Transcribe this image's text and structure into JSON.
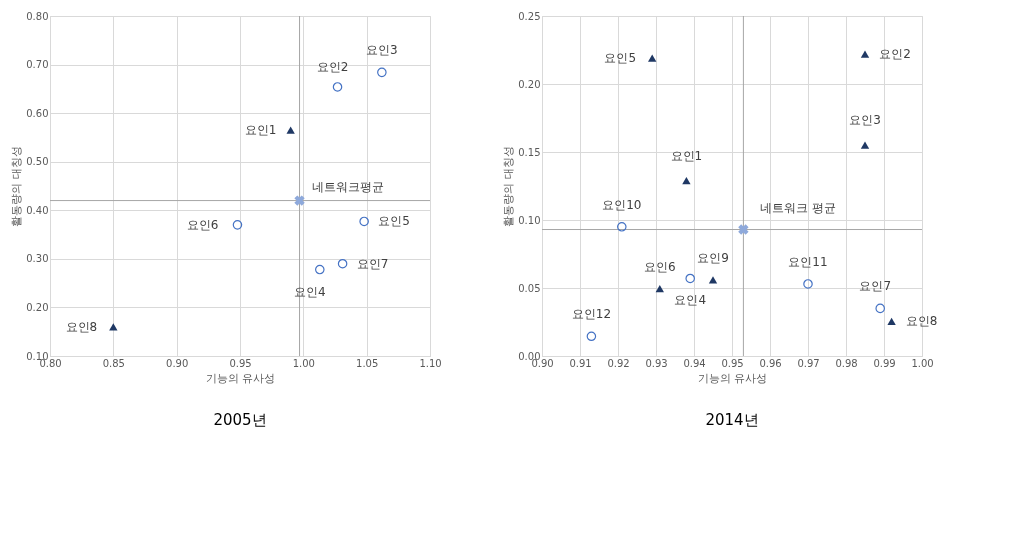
{
  "chart_data": [
    {
      "type": "scatter",
      "title": "2005년",
      "xlabel": "기능의 유사성",
      "ylabel": "활동량의 대칭성",
      "xlim": [
        0.8,
        1.1
      ],
      "xticks": [
        {
          "value": 0.8,
          "label": "0.80"
        },
        {
          "value": 0.85,
          "label": "0.85"
        },
        {
          "value": 0.9,
          "label": "0.90"
        },
        {
          "value": 0.95,
          "label": "0.95"
        },
        {
          "value": 1.0,
          "label": "1.00"
        },
        {
          "value": 1.05,
          "label": "1.05"
        },
        {
          "value": 1.1,
          "label": "1.10"
        }
      ],
      "ylim": [
        0.1,
        0.8
      ],
      "yticks": [
        {
          "value": 0.1,
          "label": "0.10"
        },
        {
          "value": 0.2,
          "label": "0.20"
        },
        {
          "value": 0.3,
          "label": "0.30"
        },
        {
          "value": 0.4,
          "label": "0.40"
        },
        {
          "value": 0.5,
          "label": "0.50"
        },
        {
          "value": 0.6,
          "label": "0.60"
        },
        {
          "value": 0.7,
          "label": "0.70"
        },
        {
          "value": 0.8,
          "label": "0.80"
        }
      ],
      "grid": true,
      "legend": false,
      "series": [
        {
          "marker": "triangle",
          "color": "#1f3864",
          "x": [
            0.99,
            0.85
          ],
          "values": [
            0.565,
            0.16
          ]
        },
        {
          "marker": "circle",
          "color": "#4472c4",
          "x": [
            1.027,
            1.062,
            1.013,
            1.048,
            0.948,
            1.031
          ],
          "values": [
            0.654,
            0.684,
            0.278,
            0.377,
            0.37,
            0.29
          ]
        },
        {
          "marker": "cross",
          "color": "#8ea9db",
          "x": [
            0.997
          ],
          "values": [
            0.42
          ]
        }
      ],
      "ref_lines": [
        {
          "axis": "x",
          "value": 0.997,
          "color": "#a6a6a6"
        },
        {
          "axis": "y",
          "value": 0.42,
          "color": "#a6a6a6"
        }
      ],
      "annotations": [
        {
          "text": "요인1",
          "x": 0.99,
          "y": 0.565
        },
        {
          "text": "요인2",
          "x": 1.027,
          "y": 0.654
        },
        {
          "text": "요인3",
          "x": 1.062,
          "y": 0.684
        },
        {
          "text": "요인4",
          "x": 1.013,
          "y": 0.278
        },
        {
          "text": "요인5",
          "x": 1.048,
          "y": 0.377
        },
        {
          "text": "요인6",
          "x": 0.948,
          "y": 0.37
        },
        {
          "text": "요인7",
          "x": 1.031,
          "y": 0.29
        },
        {
          "text": "요인8",
          "x": 0.85,
          "y": 0.16
        },
        {
          "text": "네트워크평균",
          "x": 0.997,
          "y": 0.42
        }
      ]
    },
    {
      "type": "scatter",
      "title": "2014년",
      "xlabel": "기능의 유사성",
      "ylabel": "활동량의 대칭성",
      "xlim": [
        0.9,
        1.0
      ],
      "xticks": [
        {
          "value": 0.9,
          "label": "0.90"
        },
        0.91,
        0.92,
        0.93,
        0.94,
        0.95,
        0.96,
        0.97,
        0.98,
        0.99,
        {
          "value": 1.0,
          "label": "1.00"
        }
      ],
      "ylim": [
        0.0,
        0.25
      ],
      "yticks": [
        {
          "value": 0.0,
          "label": "0.00"
        },
        0.05,
        {
          "value": 0.1,
          "label": "0.10"
        },
        0.15,
        {
          "value": 0.2,
          "label": "0.20"
        },
        0.25
      ],
      "grid": true,
      "legend": false,
      "series": [
        {
          "marker": "triangle",
          "color": "#1f3864",
          "x": [
            0.938,
            0.985,
            0.985,
            0.929,
            0.931,
            0.992,
            0.945
          ],
          "values": [
            0.129,
            0.222,
            0.155,
            0.219,
            0.0496,
            0.0255,
            0.056
          ]
        },
        {
          "marker": "circle",
          "color": "#4472c4",
          "x": [
            0.939,
            0.989,
            0.921,
            0.97,
            0.913
          ],
          "values": [
            0.057,
            0.035,
            0.095,
            0.053,
            0.0145
          ]
        },
        {
          "marker": "cross",
          "color": "#8ea9db",
          "x": [
            0.953
          ],
          "values": [
            0.093
          ]
        }
      ],
      "ref_lines": [
        {
          "axis": "x",
          "value": 0.953,
          "color": "#a6a6a6"
        },
        {
          "axis": "y",
          "value": 0.093,
          "color": "#a6a6a6"
        }
      ],
      "annotations": [
        {
          "text": "요인1",
          "x": 0.938,
          "y": 0.129
        },
        {
          "text": "요인2",
          "x": 0.985,
          "y": 0.222
        },
        {
          "text": "요인3",
          "x": 0.985,
          "y": 0.155
        },
        {
          "text": "요인4",
          "x": 0.939,
          "y": 0.057
        },
        {
          "text": "요인5",
          "x": 0.929,
          "y": 0.219
        },
        {
          "text": "요인6",
          "x": 0.931,
          "y": 0.0496
        },
        {
          "text": "요인7",
          "x": 0.989,
          "y": 0.035
        },
        {
          "text": "요인8",
          "x": 0.992,
          "y": 0.0255
        },
        {
          "text": "요인9",
          "x": 0.945,
          "y": 0.056
        },
        {
          "text": "요인10",
          "x": 0.921,
          "y": 0.095
        },
        {
          "text": "요인11",
          "x": 0.97,
          "y": 0.053
        },
        {
          "text": "요인12",
          "x": 0.913,
          "y": 0.0145
        },
        {
          "text": "네트워크 평균",
          "x": 0.953,
          "y": 0.093
        }
      ]
    }
  ]
}
